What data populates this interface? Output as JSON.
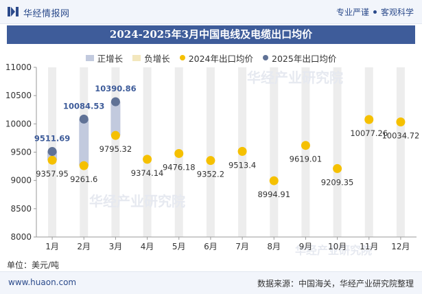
{
  "header": {
    "brand": "华经情报网",
    "right_text_1": "专业严谨",
    "right_text_2": "客观科学"
  },
  "title": "2024-2025年3月中国电线及电缆出口均价",
  "legend": {
    "positive": "正增长",
    "negative": "负增长",
    "series_2024": "2024年出口均价",
    "series_2025": "2025年出口均价"
  },
  "unit_label": "单位：美元/吨",
  "footer": {
    "website": "www.huaon.com",
    "source": "数据来源：中国海关，华经产业研究院整理"
  },
  "watermark": "华经产业研究院",
  "colors": {
    "accent": "#3e5c9a",
    "series_2024": "#f5c000",
    "series_2025": "#607296",
    "positive_bar": "#c2cade",
    "negative_bar": "#f3e7bd",
    "column_bg": "#ededed"
  },
  "chart_data": {
    "type": "scatter",
    "title": "2024-2025年3月中国电线及电缆出口均价",
    "categories": [
      "1月",
      "2月",
      "3月",
      "4月",
      "5月",
      "6月",
      "7月",
      "8月",
      "9月",
      "10月",
      "11月",
      "12月"
    ],
    "series": [
      {
        "name": "2024年出口均价",
        "values": [
          9357.95,
          9261.6,
          9795.32,
          9374.14,
          9476.18,
          9352.2,
          9513.4,
          8994.91,
          9619.01,
          9209.35,
          10077.26,
          10034.72
        ],
        "labels": [
          "9357.95",
          "9261.6",
          "9795.32",
          "9374.14",
          "9476.18",
          "9352.2",
          "9513.4",
          "8994.91",
          "9619.01",
          "9209.35",
          "10077.26",
          "10034.72"
        ]
      },
      {
        "name": "2025年出口均价",
        "values": [
          9511.69,
          10084.53,
          10390.86
        ],
        "labels": [
          "9511.69",
          "10084.53",
          "10390.86"
        ]
      }
    ],
    "change_bars": {
      "positive_months": [
        "1月",
        "2月",
        "3月"
      ],
      "negative_months": []
    },
    "ylim": [
      8000,
      11000
    ],
    "yticks": [
      "8000",
      "8500",
      "9000",
      "9500",
      "10000",
      "10500",
      "11000"
    ],
    "grid": false,
    "legend_position": "top"
  }
}
